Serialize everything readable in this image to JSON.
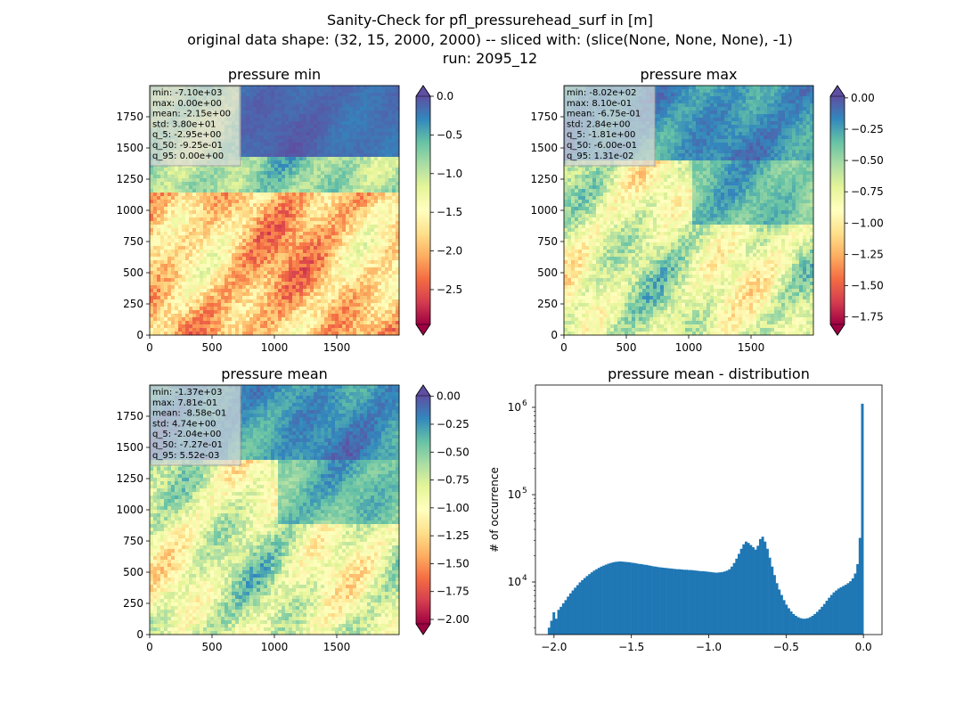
{
  "figure": {
    "suptitle_lines": [
      "Sanity-Check for pfl_pressurehead_surf in [m]",
      "original data shape: (32, 15, 2000, 2000) -- sliced with: (slice(None, None, None), -1)",
      "run: 2095_12"
    ]
  },
  "chart_data": [
    {
      "type": "heatmap",
      "title": "pressure min",
      "x_ticks": [
        "0",
        "500",
        "1000",
        "1500"
      ],
      "y_ticks": [
        "0",
        "250",
        "500",
        "750",
        "1000",
        "1250",
        "1500",
        "1750"
      ],
      "xlim": [
        0,
        2000
      ],
      "ylim": [
        0,
        2000
      ],
      "colormap": "Spectral",
      "colorbar": {
        "min": -2.95,
        "max": 0.0,
        "ticks": [
          "0.0",
          "−0.5",
          "−1.0",
          "−1.5",
          "−2.0",
          "−2.5"
        ],
        "tick_values": [
          0.0,
          -0.5,
          -1.0,
          -1.5,
          -2.0,
          -2.5
        ],
        "extend": "both"
      },
      "stats": [
        "min: -7.10e+03",
        "max: 0.00e+00",
        "mean: -2.15e+00",
        "std: 3.80e+01",
        "q_5: -2.95e+00",
        "q_50: -9.25e-01",
        "q_95: 0.00e+00"
      ]
    },
    {
      "type": "heatmap",
      "title": "pressure max",
      "x_ticks": [
        "0",
        "500",
        "1000",
        "1500"
      ],
      "y_ticks": [
        "0",
        "250",
        "500",
        "750",
        "1000",
        "1250",
        "1500",
        "1750"
      ],
      "xlim": [
        0,
        2000
      ],
      "ylim": [
        0,
        2000
      ],
      "colormap": "Spectral",
      "colorbar": {
        "min": -1.81,
        "max": 0.0131,
        "ticks": [
          "0.00",
          "−0.25",
          "−0.50",
          "−0.75",
          "−1.00",
          "−1.25",
          "−1.50",
          "−1.75"
        ],
        "tick_values": [
          0.0,
          -0.25,
          -0.5,
          -0.75,
          -1.0,
          -1.25,
          -1.5,
          -1.75
        ],
        "extend": "both"
      },
      "stats": [
        "min: -8.02e+02",
        "max: 8.10e-01",
        "mean: -6.75e-01",
        "std: 2.84e+00",
        "q_5: -1.81e+00",
        "q_50: -6.00e-01",
        "q_95: 1.31e-02"
      ]
    },
    {
      "type": "heatmap",
      "title": "pressure mean",
      "x_ticks": [
        "0",
        "500",
        "1000",
        "1500"
      ],
      "y_ticks": [
        "0",
        "250",
        "500",
        "750",
        "1000",
        "1250",
        "1500",
        "1750"
      ],
      "xlim": [
        0,
        2000
      ],
      "ylim": [
        0,
        2000
      ],
      "colormap": "Spectral",
      "colorbar": {
        "min": -2.04,
        "max": 0.00552,
        "ticks": [
          "0.00",
          "−0.25",
          "−0.50",
          "−0.75",
          "−1.00",
          "−1.25",
          "−1.50",
          "−1.75",
          "−2.00"
        ],
        "tick_values": [
          0.0,
          -0.25,
          -0.5,
          -0.75,
          -1.0,
          -1.25,
          -1.5,
          -1.75,
          -2.0
        ],
        "extend": "both"
      },
      "stats": [
        "min: -1.37e+03",
        "max: 7.81e-01",
        "mean: -8.58e-01",
        "std: 4.74e+00",
        "q_5: -2.04e+00",
        "q_50: -7.27e-01",
        "q_95: 5.52e-03"
      ]
    },
    {
      "type": "bar",
      "title": "pressure mean - distribution",
      "xlabel": "",
      "ylabel": "# of occurrence",
      "y_scale": "log",
      "xlim": [
        -2.12,
        0.12
      ],
      "ylim": [
        2500,
        1800000
      ],
      "x_ticks": [
        -2.0,
        -1.5,
        -1.0,
        -0.5,
        0.0
      ],
      "x_tick_labels": [
        "−2.0",
        "−1.5",
        "−1.0",
        "−0.5",
        "0.0"
      ],
      "y_ticks": [
        10000,
        100000,
        1000000
      ],
      "y_tick_base": "10",
      "y_tick_exponents": [
        "4",
        "5",
        "6"
      ],
      "bin_range": [
        -2.04,
        0.0
      ],
      "bar_color": "#1f77b4",
      "counts": [
        3000,
        3600,
        4500,
        3800,
        4800,
        5200,
        5700,
        6200,
        6800,
        7400,
        8000,
        8600,
        9200,
        9900,
        10500,
        11100,
        11700,
        12300,
        12900,
        13500,
        14000,
        14500,
        15000,
        15400,
        15800,
        16200,
        16500,
        16800,
        17000,
        17100,
        17200,
        17100,
        17000,
        16900,
        16800,
        16600,
        16500,
        16300,
        16100,
        16000,
        15800,
        15700,
        15500,
        15300,
        15100,
        15000,
        14800,
        14700,
        14600,
        14500,
        14400,
        14300,
        14200,
        14100,
        14000,
        14000,
        13900,
        13800,
        13800,
        13700,
        13700,
        13600,
        13500,
        13400,
        13300,
        13300,
        13200,
        13100,
        13000,
        12900,
        12800,
        12800,
        12900,
        13000,
        13200,
        13500,
        14000,
        15000,
        16500,
        18500,
        21000,
        24000,
        27000,
        29000,
        28000,
        26500,
        25000,
        23500,
        26000,
        31000,
        33000,
        29000,
        24000,
        19000,
        15000,
        12000,
        9700,
        8200,
        7100,
        6200,
        5500,
        5000,
        4600,
        4300,
        4100,
        3950,
        3850,
        3800,
        3800,
        3850,
        3950,
        4100,
        4300,
        4550,
        4850,
        5200,
        5600,
        6100,
        6600,
        7100,
        7600,
        8000,
        8400,
        8700,
        9000,
        9300,
        9700,
        10200,
        11000,
        12500,
        16000,
        32000,
        1100000
      ]
    }
  ]
}
